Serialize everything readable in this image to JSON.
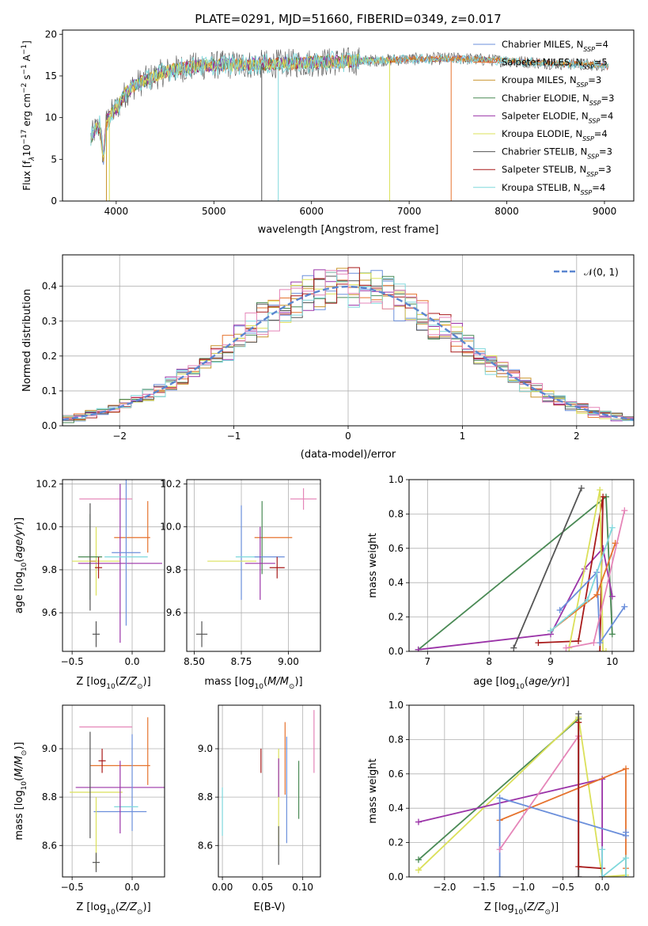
{
  "figure_title": "PLATE=0291, MJD=51660, FIBERID=0349, z=0.017",
  "colors": {
    "chabrier_miles": "#6b8fdb",
    "salpeter_miles": "#e6732e",
    "kroupa_miles": "#c8942a",
    "chabrier_elodie": "#4a8a55",
    "salpeter_elodie": "#9b34a8",
    "kroupa_elodie": "#dbe05a",
    "chabrier_stelib": "#555555",
    "salpeter_stelib": "#a81a1a",
    "kroupa_stelib": "#7fd8dc",
    "gauss": "#5b86d0",
    "pink": "#e585b8"
  },
  "legend_spectrum": [
    {
      "label": "Chabrier MILES, N",
      "sub": "SSP",
      "eq": "=4",
      "color": "#6b8fdb"
    },
    {
      "label": "Salpeter MILES, N",
      "sub": "SSP",
      "eq": "=5",
      "color": "#e6732e"
    },
    {
      "label": "Kroupa MILES, N",
      "sub": "SSP",
      "eq": "=3",
      "color": "#c8942a"
    },
    {
      "label": "Chabrier ELODIE, N",
      "sub": "SSP",
      "eq": "=3",
      "color": "#4a8a55"
    },
    {
      "label": "Salpeter ELODIE, N",
      "sub": "SSP",
      "eq": "=4",
      "color": "#9b34a8"
    },
    {
      "label": "Kroupa ELODIE, N",
      "sub": "SSP",
      "eq": "=4",
      "color": "#dbe05a"
    },
    {
      "label": "Chabrier STELIB, N",
      "sub": "SSP",
      "eq": "=3",
      "color": "#555555"
    },
    {
      "label": "Salpeter STELIB, N",
      "sub": "SSP",
      "eq": "=3",
      "color": "#a81a1a"
    },
    {
      "label": "Kroupa STELIB, N",
      "sub": "SSP",
      "eq": "=4",
      "color": "#7fd8dc"
    }
  ],
  "legend_hist": "𝒩(0, 1)",
  "chart_data": [
    {
      "id": "spectrum",
      "type": "line",
      "xlabel": "wavelength [Angstrom, rest frame]",
      "ylabel_main": "Flux [f",
      "ylabel_sub": "λ",
      "ylabel_rest": "10",
      "ylabel_exp1": "−17",
      "ylabel_tail": " erg cm",
      "ylabel_exp2": "−2",
      "ylabel_tail2": " s",
      "ylabel_exp3": "−1",
      "ylabel_tail3": " A",
      "ylabel_exp4": "−1",
      "ylabel_close": "]",
      "xlim": [
        3450,
        9300
      ],
      "ylim": [
        0,
        20.5
      ],
      "xticks": [
        "4000",
        "5000",
        "6000",
        "7000",
        "8000",
        "9000"
      ],
      "xtick_values": [
        4000,
        5000,
        6000,
        7000,
        8000,
        9000
      ],
      "yticks": [
        "0",
        "5",
        "10",
        "15",
        "20"
      ],
      "ytick_values": [
        0,
        5,
        10,
        15,
        20
      ],
      "continuum": [
        [
          3740,
          7.5
        ],
        [
          3780,
          8.5
        ],
        [
          3830,
          9.0
        ],
        [
          3870,
          5.0
        ],
        [
          3900,
          9.5
        ],
        [
          3950,
          10.5
        ],
        [
          4000,
          11.0
        ],
        [
          4050,
          12.0
        ],
        [
          4100,
          13.0
        ],
        [
          4200,
          14.0
        ],
        [
          4300,
          14.5
        ],
        [
          4400,
          15.0
        ],
        [
          4500,
          15.5
        ],
        [
          4700,
          16.0
        ],
        [
          5000,
          16.3
        ],
        [
          5500,
          16.4
        ],
        [
          6000,
          16.6
        ],
        [
          6500,
          16.8
        ],
        [
          7000,
          17.0
        ],
        [
          7500,
          17.1
        ],
        [
          8000,
          16.8
        ],
        [
          8500,
          16.5
        ],
        [
          9000,
          16.3
        ],
        [
          9040,
          16.1
        ]
      ],
      "dips": [
        {
          "x": 3900,
          "series": "kroupa_miles"
        },
        {
          "x": 3930,
          "series": "kroupa_elodie"
        },
        {
          "x": 5490,
          "series": "chabrier_stelib"
        },
        {
          "x": 5660,
          "series": "kroupa_stelib"
        },
        {
          "x": 6800,
          "series": "kroupa_elodie"
        },
        {
          "x": 7430,
          "series": "salpeter_miles"
        }
      ]
    },
    {
      "id": "histogram",
      "type": "bar",
      "xlabel": "(data-model)/error",
      "ylabel": "Normed distribution",
      "xlim": [
        -2.5,
        2.5
      ],
      "ylim": [
        0,
        0.49
      ],
      "xticks": [
        "−2",
        "−1",
        "0",
        "1",
        "2"
      ],
      "xtick_values": [
        -2,
        -1,
        0,
        1,
        2
      ],
      "yticks": [
        "0.0",
        "0.1",
        "0.2",
        "0.3",
        "0.4"
      ],
      "ytick_values": [
        0,
        0.1,
        0.2,
        0.3,
        0.4
      ],
      "bin_width": 0.1,
      "series": [
        "chabrier_miles",
        "salpeter_miles",
        "kroupa_miles",
        "chabrier_elodie",
        "salpeter_elodie",
        "kroupa_elodie",
        "chabrier_stelib",
        "salpeter_stelib",
        "kroupa_stelib",
        "pink"
      ],
      "gauss": {
        "mu": 0,
        "sigma": 1
      }
    },
    {
      "id": "age_vs_Z",
      "type": "scatter",
      "xlabel": "Z [log",
      "xlabel_sub": "10",
      "xlabel_rest": "(Z/Z",
      "xlabel_sun": "⊙",
      "xlabel_close": ")]",
      "ylabel": "age  [log",
      "ylabel_sub": "10",
      "ylabel_rest": "(age/yr)]",
      "xlim": [
        -0.58,
        0.27
      ],
      "ylim": [
        9.42,
        10.22
      ],
      "xticks": [
        "−0.5",
        "0.0"
      ],
      "xtick_values": [
        -0.5,
        0
      ],
      "yticks": [
        "9.6",
        "9.8",
        "10.0",
        "10.2"
      ],
      "ytick_values": [
        9.6,
        9.8,
        10.0,
        10.2
      ],
      "errorbars": [
        {
          "series": "pink",
          "x": -0.22,
          "y": 10.13,
          "xerr": 0.22,
          "yerr": 0.0
        },
        {
          "series": "salpeter_miles",
          "x": 0.0,
          "y": 9.95,
          "xerr": 0.15,
          "yerr": 0.0
        },
        {
          "series": "salpeter_miles",
          "x": 0.13,
          "y": 10.0,
          "xerr": 0.0,
          "yerr": 0.12
        },
        {
          "series": "kroupa_elodie",
          "x": -0.3,
          "y": 9.84,
          "xerr": 0.2,
          "yerr": 0.16
        },
        {
          "series": "salpeter_elodie",
          "x": -0.1,
          "y": 9.83,
          "xerr": 0.35,
          "yerr": 0.37
        },
        {
          "series": "chabrier_miles",
          "x": -0.05,
          "y": 9.88,
          "xerr": 0.12,
          "yerr": 0.34
        },
        {
          "series": "kroupa_stelib",
          "x": -0.05,
          "y": 9.86,
          "xerr": 0.18,
          "yerr": 0.0
        },
        {
          "series": "chabrier_elodie",
          "x": -0.35,
          "y": 9.86,
          "xerr": 0.1,
          "yerr": 0.2
        },
        {
          "series": "chabrier_stelib",
          "x": -0.35,
          "y": 9.86,
          "xerr": 0.0,
          "yerr": 0.25
        },
        {
          "series": "salpeter_stelib",
          "x": -0.28,
          "y": 9.81,
          "xerr": 0.03,
          "yerr": 0.05
        },
        {
          "series": "chabrier_stelib",
          "x": -0.3,
          "y": 9.5,
          "xerr": 0.03,
          "yerr": 0.06
        },
        {
          "series": "kroupa_miles",
          "x": -0.33,
          "y": 9.84,
          "xerr": 0.0,
          "yerr": 0.0
        }
      ]
    },
    {
      "id": "age_vs_mass",
      "type": "scatter",
      "xlabel": "mass [log",
      "xlabel_sub": "10",
      "xlabel_rest": "(M/M",
      "xlabel_sun": "⊙",
      "xlabel_close": ")]",
      "xlim": [
        8.46,
        9.17
      ],
      "ylim": [
        9.42,
        10.22
      ],
      "xticks": [
        "8.50",
        "8.75",
        "9.00"
      ],
      "xtick_values": [
        8.5,
        8.75,
        9.0
      ],
      "yticks": [
        "9.6",
        "9.8",
        "10.0",
        "10.2"
      ],
      "ytick_values": [
        9.6,
        9.8,
        10.0,
        10.2
      ],
      "errorbars": [
        {
          "series": "pink",
          "x": 9.08,
          "y": 10.13,
          "xerr": 0.07,
          "yerr": 0.05
        },
        {
          "series": "salpeter_miles",
          "x": 8.92,
          "y": 9.95,
          "xerr": 0.1,
          "yerr": 0.0
        },
        {
          "series": "chabrier_elodie",
          "x": 8.86,
          "y": 9.95,
          "xerr": 0.0,
          "yerr": 0.17
        },
        {
          "series": "chabrier_miles",
          "x": 8.75,
          "y": 9.88,
          "xerr": 0.0,
          "yerr": 0.22
        },
        {
          "series": "kroupa_stelib",
          "x": 8.79,
          "y": 9.86,
          "xerr": 0.07,
          "yerr": 0.0
        },
        {
          "series": "chabrier_miles",
          "x": 8.9,
          "y": 9.86,
          "xerr": 0.08,
          "yerr": 0.0
        },
        {
          "series": "kroupa_elodie",
          "x": 8.7,
          "y": 9.84,
          "xerr": 0.13,
          "yerr": 0.0
        },
        {
          "series": "salpeter_elodie",
          "x": 8.85,
          "y": 9.83,
          "xerr": 0.08,
          "yerr": 0.17
        },
        {
          "series": "salpeter_stelib",
          "x": 8.94,
          "y": 9.81,
          "xerr": 0.04,
          "yerr": 0.05
        },
        {
          "series": "chabrier_stelib",
          "x": 8.54,
          "y": 9.5,
          "xerr": 0.03,
          "yerr": 0.06
        }
      ]
    },
    {
      "id": "weight_vs_age",
      "type": "line",
      "xlabel": "age  [log",
      "xlabel_sub": "10",
      "xlabel_rest": "(age/yr)]",
      "ylabel": "mass weight",
      "xlim": [
        6.7,
        10.35
      ],
      "ylim": [
        0,
        1.0
      ],
      "xticks": [
        "7",
        "8",
        "9",
        "10"
      ],
      "xtick_values": [
        7,
        8,
        9,
        10
      ],
      "yticks": [
        "0.0",
        "0.2",
        "0.4",
        "0.6",
        "0.8",
        "1.0"
      ],
      "ytick_values": [
        0,
        0.2,
        0.4,
        0.6,
        0.8,
        1.0
      ],
      "series": [
        {
          "series": "chabrier_elodie",
          "x": [
            6.85,
            9.9,
            10.0
          ],
          "y": [
            0.01,
            0.9,
            0.1
          ]
        },
        {
          "series": "salpeter_elodie",
          "x": [
            6.85,
            9.0,
            9.55,
            9.85,
            10.0
          ],
          "y": [
            0.01,
            0.1,
            0.48,
            0.6,
            0.32
          ]
        },
        {
          "series": "chabrier_stelib",
          "x": [
            8.4,
            9.5
          ],
          "y": [
            0.02,
            0.95
          ]
        },
        {
          "series": "salpeter_stelib",
          "x": [
            8.8,
            9.45,
            9.85,
            9.8
          ],
          "y": [
            0.05,
            0.06,
            0.9,
            0.0
          ]
        },
        {
          "series": "kroupa_elodie",
          "x": [
            9.3,
            9.8,
            9.85,
            9.9
          ],
          "y": [
            0.02,
            0.94,
            0.0,
            0.0
          ]
        },
        {
          "series": "chabrier_miles",
          "x": [
            9.15,
            9.75,
            9.8,
            10.2
          ],
          "y": [
            0.24,
            0.46,
            0.05,
            0.26
          ]
        },
        {
          "series": "salpeter_miles",
          "x": [
            9.0,
            9.75,
            10.05
          ],
          "y": [
            0.12,
            0.33,
            0.63
          ]
        },
        {
          "series": "kroupa_stelib",
          "x": [
            9.0,
            9.6,
            10.0
          ],
          "y": [
            0.12,
            0.3,
            0.72
          ]
        },
        {
          "series": "pink",
          "x": [
            9.25,
            9.7,
            10.2
          ],
          "y": [
            0.02,
            0.05,
            0.82
          ]
        }
      ]
    },
    {
      "id": "mass_vs_Z",
      "type": "scatter",
      "xlabel": "Z [log",
      "xlabel_sub": "10",
      "xlabel_rest": "(Z/Z",
      "xlabel_sun": "⊙",
      "xlabel_close": ")]",
      "ylabel": "mass [log",
      "ylabel_sub": "10",
      "ylabel_rest": "(M/M",
      "ylabel_sun": "⊙",
      "ylabel_close": ")]",
      "xlim": [
        -0.58,
        0.27
      ],
      "ylim": [
        8.47,
        9.18
      ],
      "xticks": [
        "−0.5",
        "0.0"
      ],
      "xtick_values": [
        -0.5,
        0
      ],
      "yticks": [
        "8.6",
        "8.8",
        "9.0"
      ],
      "ytick_values": [
        8.6,
        8.8,
        9.0
      ],
      "errorbars": [
        {
          "series": "pink",
          "x": -0.22,
          "y": 9.09,
          "xerr": 0.22,
          "yerr": 0.0
        },
        {
          "series": "salpeter_miles",
          "x": 0.13,
          "y": 8.99,
          "xerr": 0.0,
          "yerr": 0.14
        },
        {
          "series": "salpeter_miles",
          "x": -0.1,
          "y": 8.93,
          "xerr": 0.25,
          "yerr": 0.0
        },
        {
          "series": "salpeter_stelib",
          "x": -0.25,
          "y": 8.95,
          "xerr": 0.03,
          "yerr": 0.05
        },
        {
          "series": "salpeter_elodie",
          "x": -0.1,
          "y": 8.84,
          "xerr": 0.37,
          "yerr": 0.0
        },
        {
          "series": "kroupa_elodie",
          "x": -0.3,
          "y": 8.82,
          "xerr": 0.22,
          "yerr": 0.0
        },
        {
          "series": "chabrier_miles",
          "x": -0.1,
          "y": 8.74,
          "xerr": 0.22,
          "yerr": 0.0
        },
        {
          "series": "chabrier_miles",
          "x": 0.0,
          "y": 8.86,
          "xerr": 0.0,
          "yerr": 0.2
        },
        {
          "series": "kroupa_stelib",
          "x": -0.05,
          "y": 8.76,
          "xerr": 0.1,
          "yerr": 0.0
        },
        {
          "series": "chabrier_stelib",
          "x": -0.35,
          "y": 8.85,
          "xerr": 0.0,
          "yerr": 0.22
        },
        {
          "series": "kroupa_elodie",
          "x": -0.3,
          "y": 8.65,
          "xerr": 0.0,
          "yerr": 0.15
        },
        {
          "series": "chabrier_stelib",
          "x": -0.3,
          "y": 8.53,
          "xerr": 0.03,
          "yerr": 0.04
        },
        {
          "series": "salpeter_elodie",
          "x": -0.1,
          "y": 8.8,
          "xerr": 0.0,
          "yerr": 0.15
        }
      ]
    },
    {
      "id": "mass_vs_ebv",
      "type": "scatter",
      "xlabel": "E(B-V)",
      "xlim": [
        -0.005,
        0.122
      ],
      "ylim": [
        8.47,
        9.18
      ],
      "xticks": [
        "0.00",
        "0.05",
        "0.10"
      ],
      "xtick_values": [
        0,
        0.05,
        0.1
      ],
      "yticks": [
        "8.6",
        "8.8",
        "9.0"
      ],
      "ytick_values": [
        8.6,
        8.8,
        9.0
      ],
      "errorbars": [
        {
          "series": "kroupa_stelib",
          "x": 0.0,
          "y": 8.74,
          "xerr": 0.0,
          "yerr": 0.1
        },
        {
          "series": "salpeter_stelib",
          "x": 0.048,
          "y": 8.95,
          "xerr": 0.0,
          "yerr": 0.05
        },
        {
          "series": "kroupa_elodie",
          "x": 0.07,
          "y": 8.8,
          "xerr": 0.0,
          "yerr": 0.2
        },
        {
          "series": "salpeter_elodie",
          "x": 0.07,
          "y": 8.88,
          "xerr": 0.0,
          "yerr": 0.08
        },
        {
          "series": "chabrier_stelib",
          "x": 0.07,
          "y": 8.6,
          "xerr": 0.0,
          "yerr": 0.08
        },
        {
          "series": "salpeter_miles",
          "x": 0.078,
          "y": 8.96,
          "xerr": 0.0,
          "yerr": 0.15
        },
        {
          "series": "chabrier_miles",
          "x": 0.08,
          "y": 8.83,
          "xerr": 0.0,
          "yerr": 0.22
        },
        {
          "series": "chabrier_elodie",
          "x": 0.095,
          "y": 8.83,
          "xerr": 0.0,
          "yerr": 0.12
        },
        {
          "series": "pink",
          "x": 0.114,
          "y": 9.03,
          "xerr": 0.0,
          "yerr": 0.13
        }
      ]
    },
    {
      "id": "weight_vs_Z",
      "type": "line",
      "xlabel": "Z [log",
      "xlabel_sub": "10",
      "xlabel_rest": "(Z/Z",
      "xlabel_sun": "⊙",
      "xlabel_close": ")]",
      "ylabel": "mass weight",
      "xlim": [
        -2.45,
        0.4
      ],
      "ylim": [
        0,
        1.0
      ],
      "xticks": [
        "−2.0",
        "−1.5",
        "−1.0",
        "−0.5",
        "0.0"
      ],
      "xtick_values": [
        -2.0,
        -1.5,
        -1.0,
        -0.5,
        0
      ],
      "yticks": [
        "0.0",
        "0.2",
        "0.4",
        "0.6",
        "0.8",
        "1.0"
      ],
      "ytick_values": [
        0,
        0.2,
        0.4,
        0.6,
        0.8,
        1.0
      ],
      "series": [
        {
          "series": "chabrier_elodie",
          "x": [
            -2.33,
            -0.3,
            -0.3
          ],
          "y": [
            0.1,
            0.92,
            0.0
          ]
        },
        {
          "series": "kroupa_elodie",
          "x": [
            -2.33,
            -0.3,
            0.0,
            0.3
          ],
          "y": [
            0.04,
            0.93,
            0.0,
            0.01
          ]
        },
        {
          "series": "salpeter_elodie",
          "x": [
            -2.33,
            0.0,
            0.0
          ],
          "y": [
            0.32,
            0.57,
            0.0
          ]
        },
        {
          "series": "salpeter_miles",
          "x": [
            -1.3,
            0.3,
            0.3
          ],
          "y": [
            0.33,
            0.63,
            0.05
          ]
        },
        {
          "series": "chabrier_miles",
          "x": [
            -1.3,
            -1.3,
            0.3,
            0.3
          ],
          "y": [
            0.0,
            0.46,
            0.24,
            0.26
          ]
        },
        {
          "series": "pink",
          "x": [
            -1.3,
            -0.3,
            -0.3
          ],
          "y": [
            0.16,
            0.82,
            0.0
          ]
        },
        {
          "series": "chabrier_stelib",
          "x": [
            -0.3,
            -0.3
          ],
          "y": [
            0.0,
            0.95
          ]
        },
        {
          "series": "salpeter_stelib",
          "x": [
            -0.3,
            -0.3,
            0.0,
            0.0
          ],
          "y": [
            0.9,
            0.06,
            0.05,
            0.0
          ]
        },
        {
          "series": "kroupa_stelib",
          "x": [
            0.0,
            0.0,
            0.3,
            0.3
          ],
          "y": [
            0.16,
            0.0,
            0.11,
            0.0
          ]
        }
      ]
    }
  ]
}
